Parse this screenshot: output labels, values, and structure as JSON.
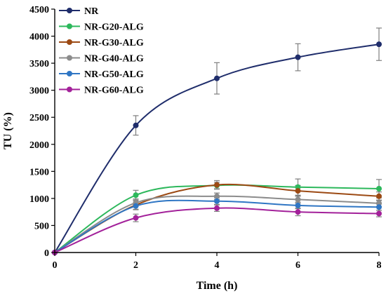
{
  "chart_data": {
    "type": "line",
    "title": "",
    "xlabel": "Time (h)",
    "ylabel": "TU (%)",
    "x": [
      0,
      2,
      4,
      6,
      8
    ],
    "xlim": [
      0,
      8
    ],
    "ylim": [
      0,
      4500
    ],
    "xticks": [
      "0",
      "2",
      "4",
      "6",
      "8"
    ],
    "yticks": [
      "0",
      "500",
      "1000",
      "1500",
      "2000",
      "2500",
      "3000",
      "3500",
      "4000",
      "4500"
    ],
    "grid": false,
    "legend_position": "top-left",
    "series": [
      {
        "name": "NR",
        "color": "#1f2d6b",
        "values": [
          0,
          2350,
          3220,
          3610,
          3850
        ],
        "errors": [
          0,
          180,
          290,
          250,
          300
        ]
      },
      {
        "name": "NR-G20-ALG",
        "color": "#2db85c",
        "values": [
          0,
          1060,
          1240,
          1210,
          1180
        ],
        "errors": [
          0,
          90,
          60,
          150,
          170
        ]
      },
      {
        "name": "NR-G30-ALG",
        "color": "#9c4a14",
        "values": [
          0,
          880,
          1250,
          1140,
          1040
        ],
        "errors": [
          0,
          80,
          80,
          100,
          80
        ]
      },
      {
        "name": "NR-G40-ALG",
        "color": "#8c8c8c",
        "values": [
          0,
          920,
          1040,
          980,
          910
        ],
        "errors": [
          0,
          70,
          60,
          70,
          60
        ]
      },
      {
        "name": "NR-G50-ALG",
        "color": "#2f76c4",
        "values": [
          0,
          860,
          950,
          870,
          840
        ],
        "errors": [
          0,
          70,
          60,
          60,
          60
        ]
      },
      {
        "name": "NR-G60-ALG",
        "color": "#a3219a",
        "values": [
          0,
          640,
          820,
          750,
          720
        ],
        "errors": [
          0,
          70,
          60,
          70,
          60
        ]
      }
    ]
  }
}
